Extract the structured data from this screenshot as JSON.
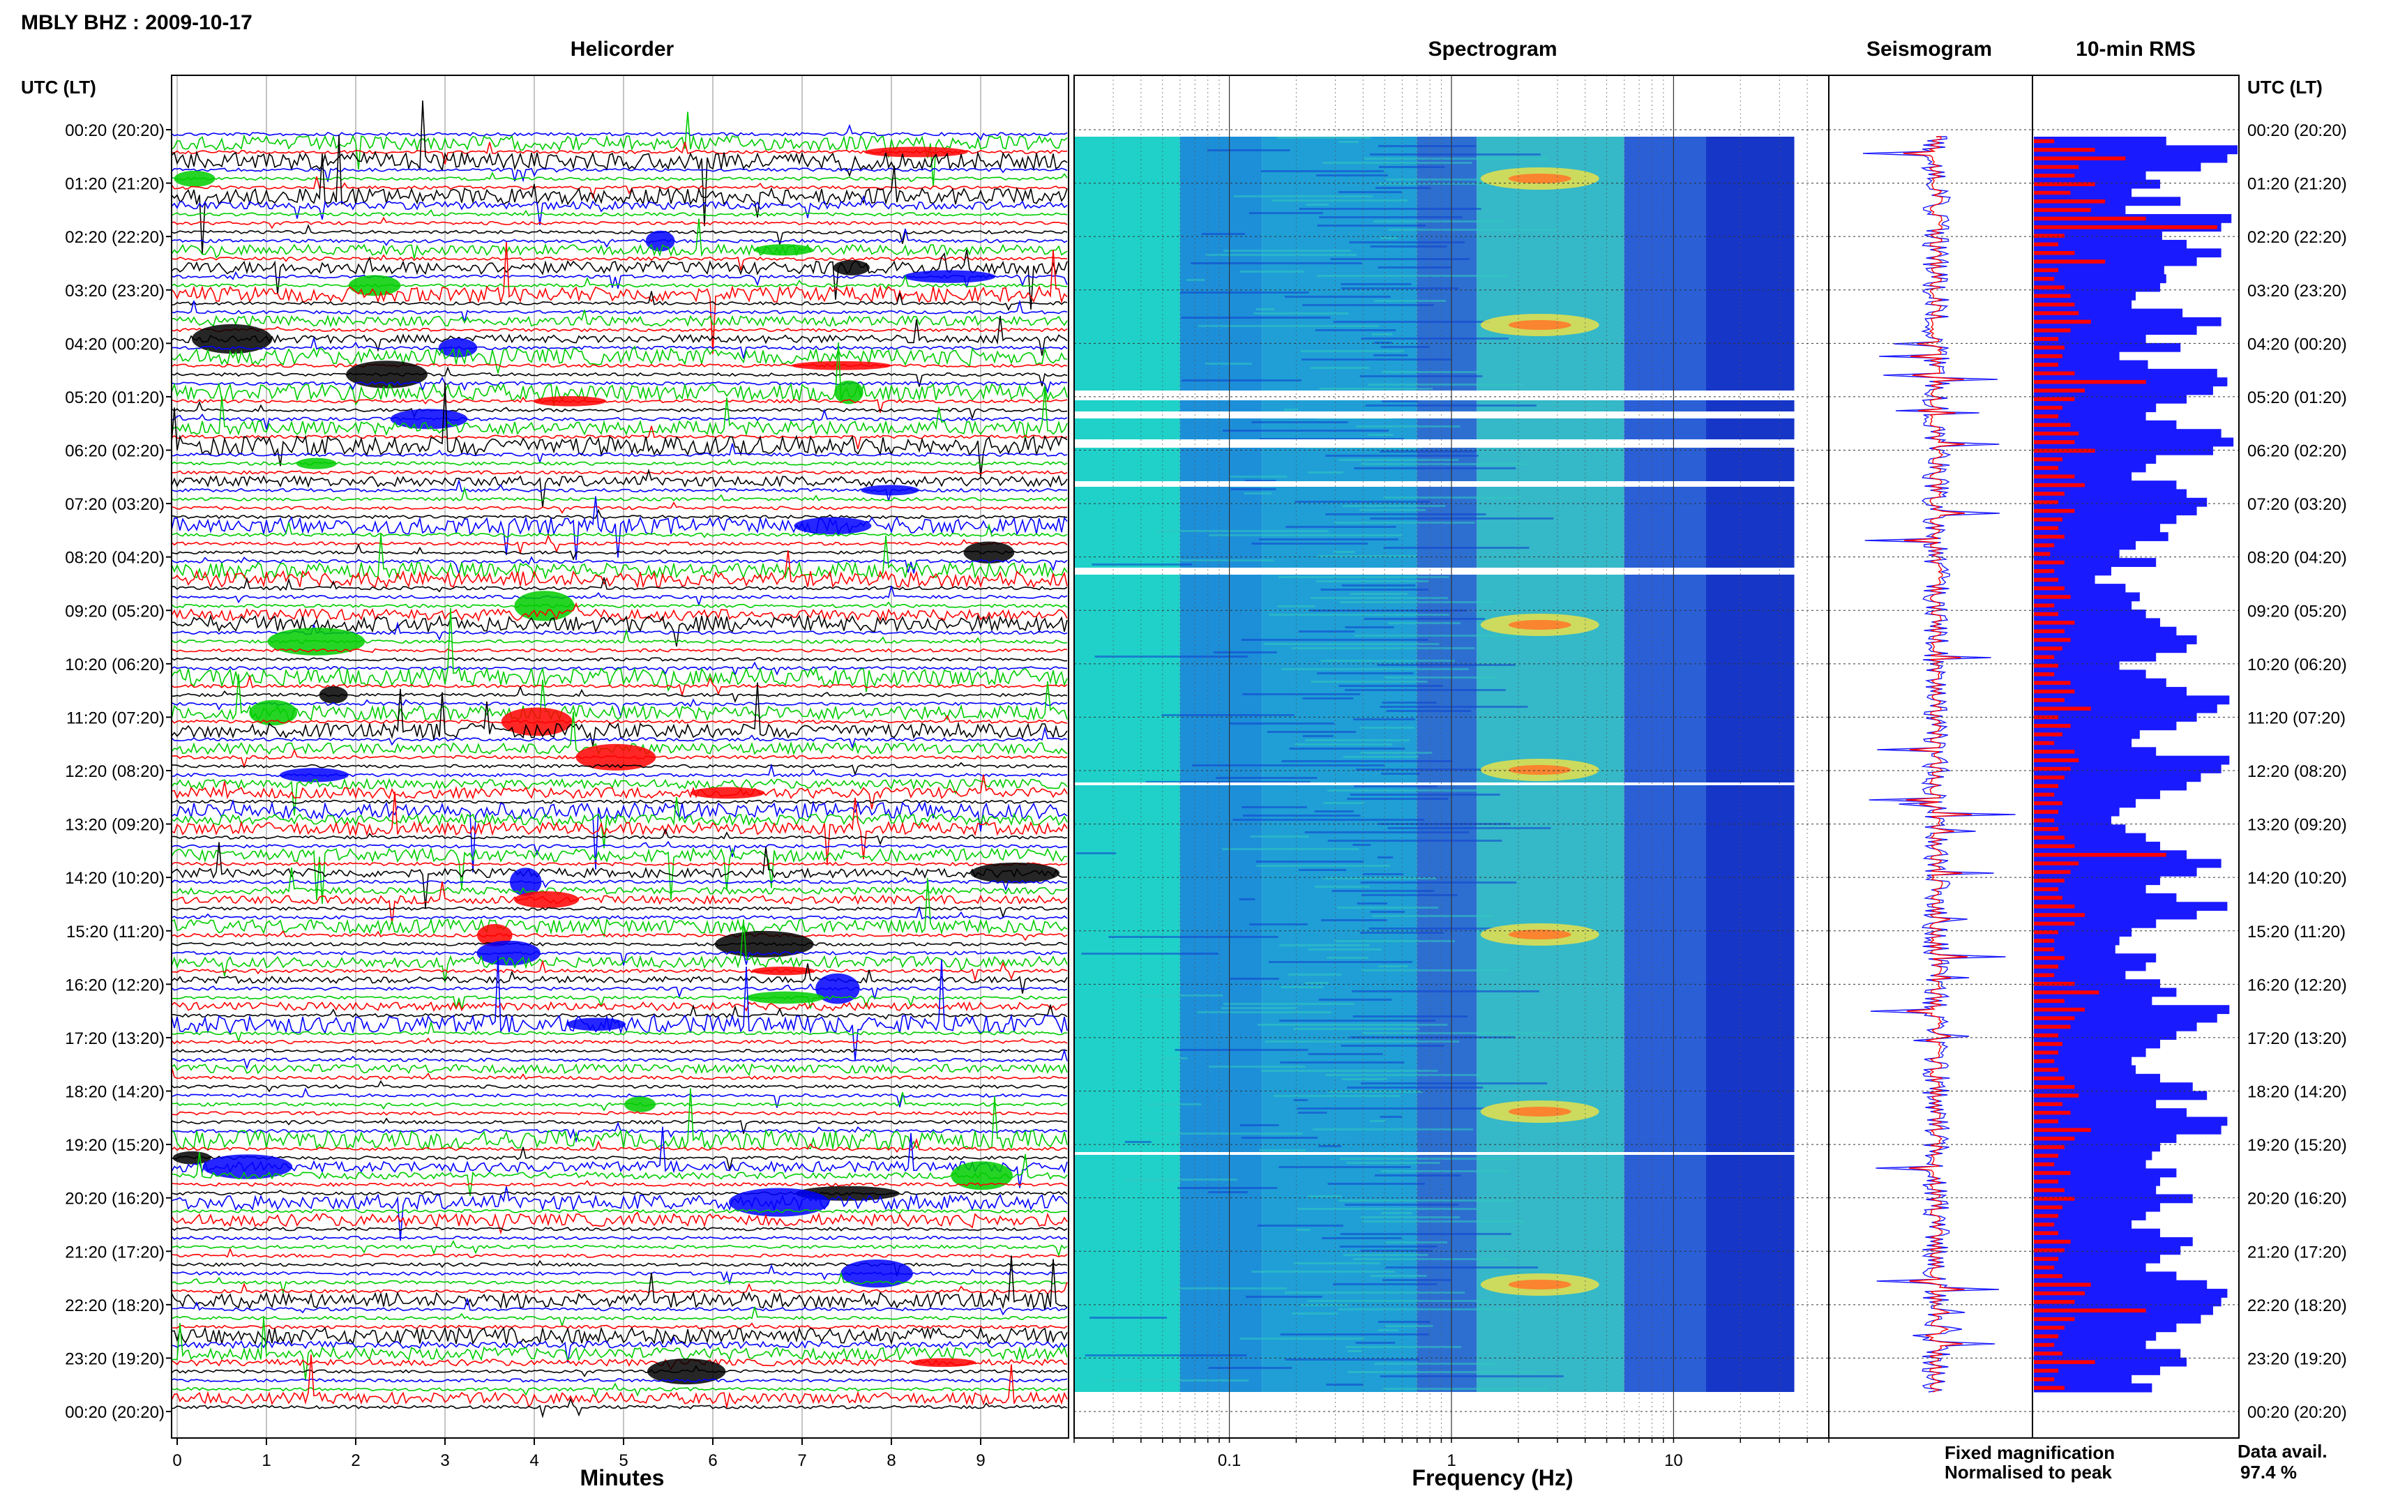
{
  "page_title": "MBLY BHZ : 2009-10-17",
  "panel_titles": {
    "helicorder": "Helicorder",
    "spectrogram": "Spectrogram",
    "seismogram": "Seismogram",
    "rms": "10-min RMS"
  },
  "time_axis": {
    "header_left": "UTC (LT)",
    "header_right": "UTC (LT)",
    "labels": [
      "00:20 (20:20)",
      "01:20 (21:20)",
      "02:20 (22:20)",
      "03:20 (23:20)",
      "04:20 (00:20)",
      "05:20 (01:20)",
      "06:20 (02:20)",
      "07:20 (03:20)",
      "08:20 (04:20)",
      "09:20 (05:20)",
      "10:20 (06:20)",
      "11:20 (07:20)",
      "12:20 (08:20)",
      "13:20 (09:20)",
      "14:20 (10:20)",
      "15:20 (11:20)",
      "16:20 (12:20)",
      "17:20 (13:20)",
      "18:20 (14:20)",
      "19:20 (15:20)",
      "20:20 (16:20)",
      "21:20 (17:20)",
      "22:20 (18:20)",
      "23:20 (19:20)",
      "00:20 (20:20)"
    ]
  },
  "x_labels": {
    "helicorder": "Minutes",
    "spectrogram": "Frequency (Hz)"
  },
  "legend": {
    "fixed": "Fixed magnification",
    "fixed_color": "#1a1aff",
    "normalised": "Normalised to peak",
    "normalised_color": "#ff0000"
  },
  "availability": {
    "label": "Data avail.",
    "value": "97.4 %"
  },
  "chart_data": {
    "type": "bar",
    "helicorder": {
      "minutes_ticks": [
        "0",
        "1",
        "2",
        "3",
        "4",
        "5",
        "6",
        "7",
        "8",
        "9"
      ],
      "trace_colors": [
        "#0000ff",
        "#00cc00",
        "#ff0000",
        "#000000"
      ]
    },
    "spectrogram": {
      "scale": "log",
      "ticks": [
        {
          "v": 0.1,
          "label": "0.1"
        },
        {
          "v": 1,
          "label": "1"
        },
        {
          "v": 10,
          "label": "10"
        }
      ],
      "xlim": [
        0.02,
        50
      ]
    },
    "rms": {
      "description_units": "relative",
      "fixed": [
        0.65,
        1.0,
        0.95,
        0.82,
        0.55,
        0.62,
        0.48,
        0.72,
        0.45,
        0.97,
        0.92,
        0.63,
        0.75,
        0.92,
        0.8,
        0.64,
        0.65,
        0.62,
        0.5,
        0.48,
        0.73,
        0.92,
        0.8,
        0.55,
        0.72,
        0.42,
        0.56,
        0.9,
        0.95,
        0.88,
        0.75,
        0.6,
        0.55,
        0.7,
        0.92,
        0.98,
        0.88,
        0.6,
        0.55,
        0.48,
        0.7,
        0.75,
        0.85,
        0.8,
        0.7,
        0.62,
        0.66,
        0.5,
        0.42,
        0.6,
        0.38,
        0.3,
        0.45,
        0.52,
        0.48,
        0.55,
        0.62,
        0.7,
        0.8,
        0.75,
        0.6,
        0.42,
        0.55,
        0.65,
        0.75,
        0.96,
        0.9,
        0.8,
        0.7,
        0.52,
        0.48,
        0.6,
        0.96,
        0.92,
        0.82,
        0.75,
        0.62,
        0.5,
        0.42,
        0.38,
        0.45,
        0.55,
        0.62,
        0.75,
        0.92,
        0.8,
        0.62,
        0.55,
        0.7,
        0.95,
        0.8,
        0.6,
        0.48,
        0.42,
        0.4,
        0.6,
        0.55,
        0.45,
        0.62,
        0.7,
        0.58,
        0.96,
        0.9,
        0.8,
        0.7,
        0.62,
        0.55,
        0.48,
        0.5,
        0.62,
        0.78,
        0.85,
        0.6,
        0.75,
        0.95,
        0.92,
        0.7,
        0.62,
        0.58,
        0.55,
        0.7,
        0.62,
        0.6,
        0.78,
        0.62,
        0.55,
        0.48,
        0.62,
        0.78,
        0.72,
        0.62,
        0.55,
        0.7,
        0.85,
        0.95,
        0.92,
        0.88,
        0.82,
        0.7,
        0.6,
        0.55,
        0.72,
        0.75,
        0.62,
        0.48,
        0.58
      ],
      "normalised": [
        0.1,
        0.3,
        0.45,
        0.22,
        0.2,
        0.3,
        0.18,
        0.35,
        0.28,
        0.55,
        0.9,
        0.15,
        0.12,
        0.2,
        0.35,
        0.12,
        0.1,
        0.15,
        0.18,
        0.2,
        0.22,
        0.28,
        0.18,
        0.12,
        0.15,
        0.14,
        0.12,
        0.2,
        0.55,
        0.25,
        0.2,
        0.14,
        0.12,
        0.18,
        0.22,
        0.2,
        0.3,
        0.14,
        0.12,
        0.2,
        0.25,
        0.15,
        0.12,
        0.2,
        0.14,
        0.12,
        0.15,
        0.1,
        0.08,
        0.15,
        0.1,
        0.12,
        0.15,
        0.18,
        0.1,
        0.12,
        0.2,
        0.15,
        0.18,
        0.14,
        0.1,
        0.12,
        0.1,
        0.18,
        0.2,
        0.15,
        0.28,
        0.12,
        0.18,
        0.14,
        0.1,
        0.2,
        0.22,
        0.18,
        0.15,
        0.12,
        0.1,
        0.14,
        0.12,
        0.1,
        0.12,
        0.15,
        0.2,
        0.65,
        0.22,
        0.18,
        0.15,
        0.12,
        0.14,
        0.2,
        0.25,
        0.2,
        0.12,
        0.1,
        0.1,
        0.15,
        0.12,
        0.1,
        0.2,
        0.32,
        0.15,
        0.25,
        0.2,
        0.18,
        0.12,
        0.14,
        0.12,
        0.1,
        0.12,
        0.15,
        0.2,
        0.22,
        0.14,
        0.18,
        0.12,
        0.28,
        0.2,
        0.15,
        0.12,
        0.1,
        0.18,
        0.12,
        0.15,
        0.2,
        0.14,
        0.12,
        0.1,
        0.12,
        0.18,
        0.15,
        0.12,
        0.1,
        0.14,
        0.28,
        0.25,
        0.2,
        0.55,
        0.2,
        0.15,
        0.12,
        0.1,
        0.14,
        0.3,
        0.12,
        0.1,
        0.15
      ]
    }
  }
}
